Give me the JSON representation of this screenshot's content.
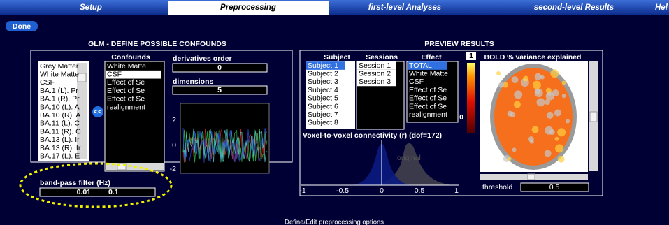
{
  "tabs": [
    "Setup",
    "Preprocessing",
    "first-level Analyses",
    "second-level Results",
    "Hel"
  ],
  "done_button": "Done",
  "confounds_panel": {
    "title": "GLM - DEFINE POSSIBLE CONFOUNDS",
    "available": [
      "Grey Matter",
      "White Matte",
      "CSF",
      "BA.1 (L). Pr",
      "BA.1 (R). Pr",
      "BA.10 (L). A",
      "BA.10 (R). A",
      "BA.11 (L). C",
      "BA.11 (R). C",
      "BA.13 (L). Ir",
      "BA.13 (R). Ir",
      "BA.17 (L). E"
    ],
    "confounds_header": "Confounds",
    "confounds": [
      "White Matte",
      "CSF",
      "Effect of Se",
      "Effect of Se",
      "Effect of Se",
      "realignment"
    ],
    "add_button": "<<",
    "derivatives_label": "derivatives order",
    "derivatives_value": "0",
    "dimensions_label": "dimensions",
    "dimensions_value": "5",
    "plot_yticks": [
      "2",
      "0",
      "-2"
    ],
    "bandpass_label": "band-pass filter (Hz)",
    "bandpass_values": [
      "0.01",
      "0.1"
    ]
  },
  "preview_panel": {
    "title": "PREVIEW RESULTS",
    "subject_header": "Subject",
    "subjects": [
      "Subject 1",
      "Subject 2",
      "Subject 3",
      "Subject 4",
      "Subject 5",
      "Subject 6",
      "Subject 7",
      "Subject 8"
    ],
    "sessions_header": "Sessions",
    "sessions": [
      "Session 1",
      "Session 2",
      "Session 3"
    ],
    "effect_header": "Effect",
    "effects": [
      "TOTAL",
      "White Matte",
      "CSF",
      "Effect of Se",
      "Effect of Se",
      "Effect of Se",
      "realignment"
    ],
    "slice_number": "1",
    "bold_title": "BOLD % variance explained",
    "colorbar_label": "0",
    "connectivity_title": "Voxel-to-voxel connectivity (r) (dof=172)",
    "connectivity_xticks": [
      "-1",
      "-0.5",
      "0",
      "0.5",
      "1"
    ],
    "original_label": "original",
    "threshold_label": "threshold",
    "threshold_value": "0.5"
  },
  "status": "Define/Edit preprocessing options"
}
